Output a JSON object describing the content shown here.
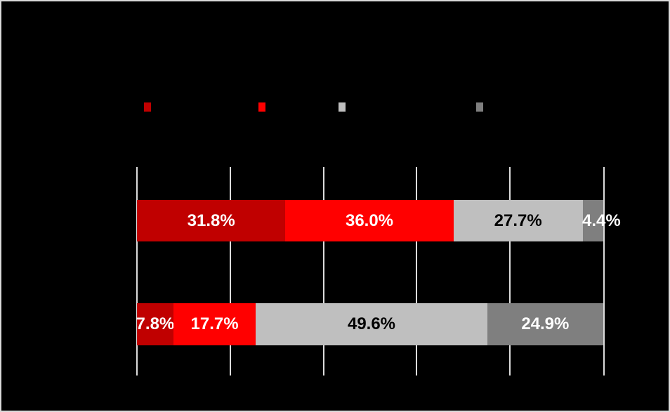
{
  "canvas": {
    "background": "#000000",
    "border_color": "#D9D9D9",
    "gridline_color": "#DCDCDC"
  },
  "chart_data": {
    "type": "bar",
    "orientation": "horizontal",
    "stacked": true,
    "title": "",
    "xlabel": "",
    "ylabel": "",
    "xlim": [
      0,
      100
    ],
    "gridline_positions_pct": [
      0,
      20,
      40,
      60,
      80,
      100
    ],
    "axis_tick_labels_visible": false,
    "categories": [
      "",
      ""
    ],
    "legend_position": "top",
    "legend_labels_visible": false,
    "series": [
      {
        "name": "dark-red",
        "color": "#C00000",
        "values": [
          31.8,
          7.8
        ]
      },
      {
        "name": "red",
        "color": "#FF0000",
        "values": [
          36.0,
          17.7
        ]
      },
      {
        "name": "light-gray",
        "color": "#BFBFBF",
        "values": [
          27.7,
          49.6
        ]
      },
      {
        "name": "dark-gray",
        "color": "#7F7F7F",
        "values": [
          4.4,
          24.9
        ]
      }
    ]
  },
  "legend": {
    "markers": [
      {
        "color": "#C00000"
      },
      {
        "color": "#FF0000"
      },
      {
        "color": "#BFBFBF"
      },
      {
        "color": "#7F7F7F"
      }
    ]
  },
  "bars": [
    {
      "segments": [
        {
          "label": "31.8%",
          "value": 31.8,
          "color": "#C00000",
          "text_color": "#FFFFFF"
        },
        {
          "label": "36.0%",
          "value": 36.0,
          "color": "#FF0000",
          "text_color": "#FFFFFF"
        },
        {
          "label": "27.7%",
          "value": 27.7,
          "color": "#BFBFBF",
          "text_color": "#000000"
        },
        {
          "label": "4.4%",
          "value": 4.4,
          "color": "#7F7F7F",
          "text_color": "#FFFFFF"
        }
      ]
    },
    {
      "segments": [
        {
          "label": "7.8%",
          "value": 7.8,
          "color": "#C00000",
          "text_color": "#FFFFFF"
        },
        {
          "label": "17.7%",
          "value": 17.7,
          "color": "#FF0000",
          "text_color": "#FFFFFF"
        },
        {
          "label": "49.6%",
          "value": 49.6,
          "color": "#BFBFBF",
          "text_color": "#000000"
        },
        {
          "label": "24.9%",
          "value": 24.9,
          "color": "#7F7F7F",
          "text_color": "#FFFFFF"
        }
      ]
    }
  ]
}
